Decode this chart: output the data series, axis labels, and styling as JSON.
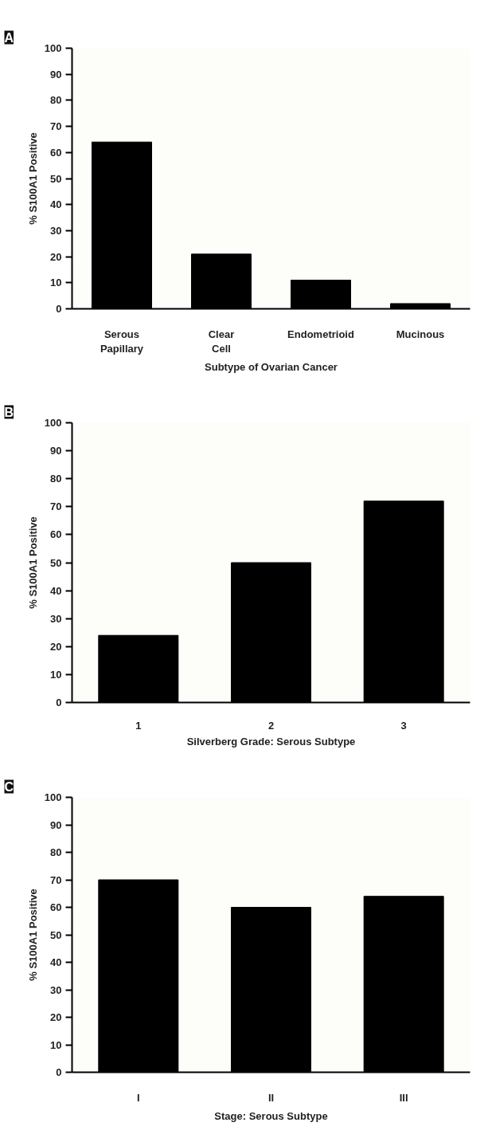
{
  "chart_data": [
    {
      "type": "bar",
      "title": "A",
      "xlabel": "Subtype of Ovarian Cancer",
      "ylabel": "% S100A1 Positive",
      "categories": [
        "Serous Papillary",
        "Clear Cell",
        "Endometrioid",
        "Mucinous"
      ],
      "values": [
        64,
        21,
        11,
        2
      ],
      "color": "#000000",
      "ylim": [
        0,
        100
      ],
      "yticks": [
        0,
        10,
        20,
        30,
        40,
        50,
        60,
        70,
        80,
        90,
        100
      ],
      "grid": false
    },
    {
      "type": "bar",
      "title": "B",
      "xlabel": "Silverberg Grade: Serous Subtype",
      "ylabel": "% S100A1 Positive",
      "categories": [
        "1",
        "2",
        "3"
      ],
      "values": [
        24,
        50,
        72
      ],
      "color": "#000000",
      "ylim": [
        0,
        100
      ],
      "yticks": [
        0,
        10,
        20,
        30,
        40,
        50,
        60,
        70,
        80,
        90,
        100
      ],
      "grid": false
    },
    {
      "type": "bar",
      "title": "C",
      "xlabel": "Stage: Serous Subtype",
      "ylabel": "% S100A1 Positive",
      "categories": [
        "I",
        "II",
        "III"
      ],
      "values": [
        70,
        60,
        64
      ],
      "color": "#000000",
      "ylim": [
        0,
        100
      ],
      "yticks": [
        0,
        10,
        20,
        30,
        40,
        50,
        60,
        70,
        80,
        90,
        100
      ],
      "grid": false
    }
  ]
}
